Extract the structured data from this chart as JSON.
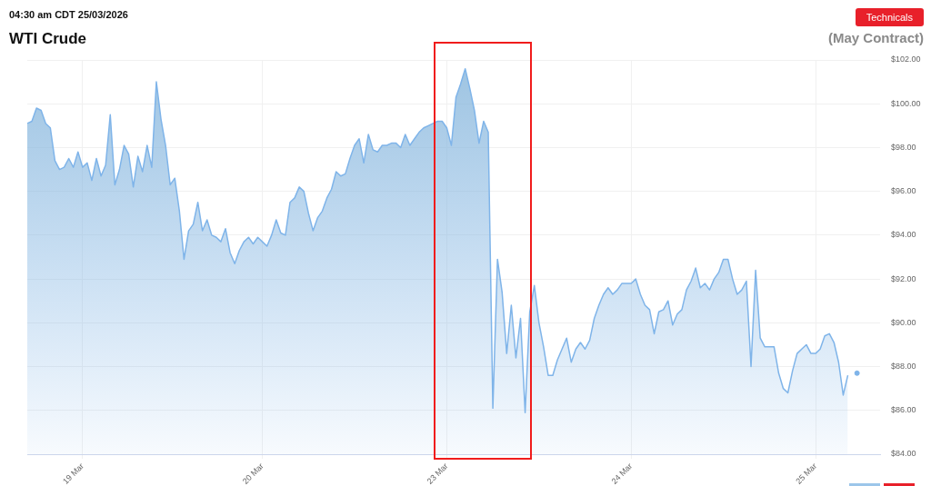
{
  "chart_data": {
    "type": "area",
    "title": "WTI Crude",
    "subtitle": "(May Contract)",
    "annotations": [
      "04:30 am CDT 25/03/2026",
      "Technicals"
    ],
    "categories": [
      null,
      null,
      null,
      null,
      null,
      null,
      null,
      null,
      null,
      null,
      null,
      null,
      "19 Mar",
      null,
      null,
      null,
      null,
      null,
      null,
      null,
      null,
      null,
      null,
      null,
      null,
      null,
      null,
      null,
      null,
      null,
      null,
      null,
      null,
      null,
      null,
      null,
      null,
      null,
      null,
      null,
      null,
      null,
      null,
      null,
      null,
      null,
      null,
      null,
      null,
      null,
      null,
      "20 Mar",
      null,
      null,
      null,
      null,
      null,
      null,
      null,
      null,
      null,
      null,
      null,
      null,
      null,
      null,
      null,
      null,
      null,
      null,
      null,
      null,
      null,
      null,
      null,
      null,
      null,
      null,
      null,
      null,
      null,
      null,
      null,
      null,
      null,
      null,
      null,
      null,
      null,
      null,
      null,
      "23 Mar",
      null,
      null,
      null,
      null,
      null,
      null,
      null,
      null,
      null,
      null,
      null,
      null,
      null,
      null,
      null,
      null,
      null,
      null,
      null,
      null,
      null,
      null,
      null,
      null,
      null,
      null,
      null,
      null,
      null,
      null,
      null,
      null,
      null,
      null,
      null,
      null,
      null,
      null,
      null,
      "24 Mar",
      null,
      null,
      null,
      null,
      null,
      null,
      null,
      null,
      null,
      null,
      null,
      null,
      null,
      null,
      null,
      null,
      null,
      null,
      null,
      null,
      null,
      null,
      null,
      null,
      null,
      null,
      null,
      null,
      null,
      null,
      null,
      null,
      null,
      null,
      null,
      null,
      null,
      null,
      null,
      "25 Mar",
      null,
      null,
      null,
      null,
      null,
      null,
      null,
      null,
      null,
      null,
      null,
      null,
      null,
      null
    ],
    "ylim": [
      84,
      102
    ],
    "yticks": [
      {
        "value": 84,
        "label": "$84.00"
      },
      {
        "value": 86,
        "label": "$86.00"
      },
      {
        "value": 88,
        "label": "$88.00"
      },
      {
        "value": 90,
        "label": "$90.00"
      },
      {
        "value": 92,
        "label": "$92.00"
      },
      {
        "value": 94,
        "label": "$94.00"
      },
      {
        "value": 96,
        "label": "$96.00"
      },
      {
        "value": 98,
        "label": "$98.00"
      },
      {
        "value": 100,
        "label": "$100.00"
      },
      {
        "value": 102,
        "label": "$102.00"
      }
    ],
    "grid": true,
    "legend": false,
    "marker": "none",
    "series": [
      {
        "color": "#7fb4e9",
        "values": [
          99.1,
          99.2,
          99.8,
          99.7,
          99.1,
          98.9,
          97.4,
          97.0,
          97.1,
          97.5,
          97.1,
          97.8,
          97.1,
          97.3,
          96.5,
          97.5,
          96.7,
          97.2,
          99.5,
          96.3,
          97.0,
          98.1,
          97.7,
          96.2,
          97.6,
          96.9,
          98.1,
          97.1,
          101.0,
          99.3,
          98.1,
          96.3,
          96.6,
          95.1,
          92.9,
          94.2,
          94.5,
          95.5,
          94.2,
          94.7,
          94.0,
          93.9,
          93.7,
          94.3,
          93.2,
          92.7,
          93.3,
          93.7,
          93.9,
          93.6,
          93.9,
          93.7,
          93.5,
          94.0,
          94.7,
          94.1,
          94.0,
          95.5,
          95.7,
          96.2,
          96.0,
          95.0,
          94.2,
          94.8,
          95.1,
          95.7,
          96.1,
          96.9,
          96.7,
          96.8,
          97.5,
          98.1,
          98.4,
          97.3,
          98.6,
          97.9,
          97.8,
          98.1,
          98.1,
          98.2,
          98.2,
          98.0,
          98.6,
          98.1,
          98.4,
          98.7,
          98.9,
          99.0,
          99.1,
          99.2,
          99.2,
          98.9,
          98.1,
          100.3,
          100.9,
          101.6,
          100.7,
          99.7,
          98.2,
          99.2,
          98.7,
          86.1,
          92.9,
          91.4,
          88.6,
          90.8,
          88.4,
          90.2,
          85.9,
          90.5,
          91.7,
          90.0,
          88.9,
          87.6,
          87.6,
          88.3,
          88.8,
          89.3,
          88.2,
          88.8,
          89.1,
          88.8,
          89.2,
          90.2,
          90.8,
          91.3,
          91.6,
          91.3,
          91.5,
          91.8,
          91.8,
          91.8,
          92.0,
          91.3,
          90.8,
          90.6,
          89.5,
          90.5,
          90.6,
          91.0,
          89.9,
          90.4,
          90.6,
          91.5,
          91.9,
          92.5,
          91.6,
          91.8,
          91.5,
          92.0,
          92.3,
          92.9,
          92.9,
          92.0,
          91.3,
          91.5,
          91.9,
          88.0,
          92.4,
          89.3,
          88.9,
          88.9,
          88.9,
          87.7,
          87.0,
          86.8,
          87.8,
          88.6,
          88.8,
          89.0,
          88.6,
          88.6,
          88.8,
          89.4,
          89.5,
          89.1,
          88.2,
          86.7,
          87.6,
          null,
          null,
          null,
          null,
          null,
          null,
          null
        ]
      },
      {
        "type": "scatter",
        "color": "#7fb4e9",
        "marker": "circle",
        "values": [
          null,
          null,
          null,
          null,
          null,
          null,
          null,
          null,
          null,
          null,
          null,
          null,
          null,
          null,
          null,
          null,
          null,
          null,
          null,
          null,
          null,
          null,
          null,
          null,
          null,
          null,
          null,
          null,
          null,
          null,
          null,
          null,
          null,
          null,
          null,
          null,
          null,
          null,
          null,
          null,
          null,
          null,
          null,
          null,
          null,
          null,
          null,
          null,
          null,
          null,
          null,
          null,
          null,
          null,
          null,
          null,
          null,
          null,
          null,
          null,
          null,
          null,
          null,
          null,
          null,
          null,
          null,
          null,
          null,
          null,
          null,
          null,
          null,
          null,
          null,
          null,
          null,
          null,
          null,
          null,
          null,
          null,
          null,
          null,
          null,
          null,
          null,
          null,
          null,
          null,
          null,
          null,
          null,
          null,
          null,
          null,
          null,
          null,
          null,
          null,
          null,
          null,
          null,
          null,
          null,
          null,
          null,
          null,
          null,
          null,
          null,
          null,
          null,
          null,
          null,
          null,
          null,
          null,
          null,
          null,
          null,
          null,
          null,
          null,
          null,
          null,
          null,
          null,
          null,
          null,
          null,
          null,
          null,
          null,
          null,
          null,
          null,
          null,
          null,
          null,
          null,
          null,
          null,
          null,
          null,
          null,
          null,
          null,
          null,
          null,
          null,
          null,
          null,
          null,
          null,
          null,
          null,
          null,
          null,
          null,
          null,
          null,
          null,
          null,
          null,
          null,
          null,
          null,
          null,
          null,
          null,
          null,
          null,
          null,
          null,
          null,
          null,
          null,
          null,
          null,
          87.7,
          null,
          null,
          null,
          null,
          null
        ]
      }
    ]
  }
}
